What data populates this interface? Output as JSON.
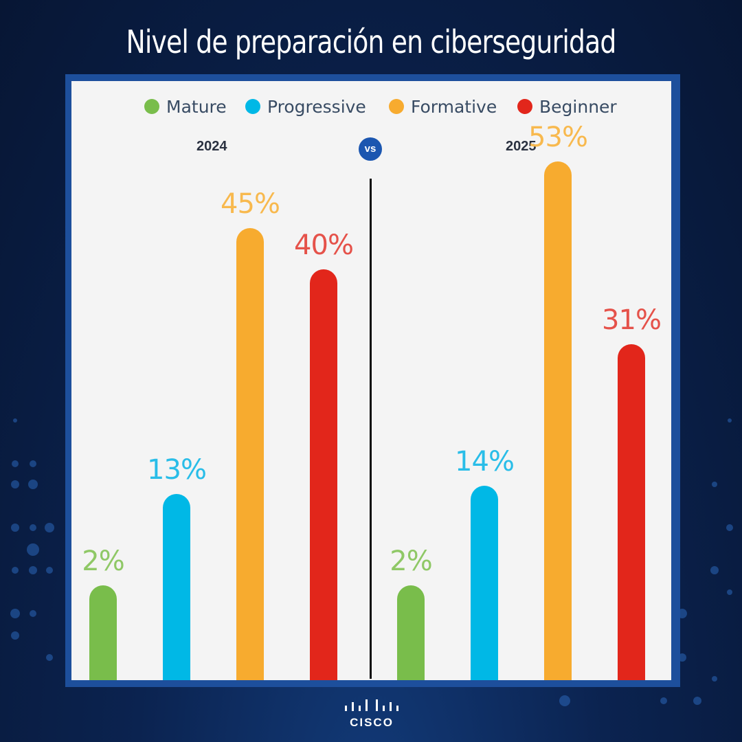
{
  "title": "Nivel de preparación en ciberseguridad",
  "brand": "CISCO",
  "vs_label": "vs",
  "chart_data": {
    "type": "bar",
    "title": "Nivel de preparación en ciberseguridad",
    "categories": [
      "Mature",
      "Progressive",
      "Formative",
      "Beginner"
    ],
    "colors": {
      "Mature": "#79bd4b",
      "Progressive": "#00b8e6",
      "Formative": "#f7ab2f",
      "Beginner": "#e2261b"
    },
    "label_colors": {
      "Mature": "#8fc866",
      "Progressive": "#29bde8",
      "Formative": "#f8b94e",
      "Beginner": "#e5524a"
    },
    "legend_position": "top",
    "ylim": [
      0,
      60
    ],
    "groups": [
      {
        "name": "2024",
        "values": [
          2,
          13,
          45,
          40
        ],
        "labels": [
          "2%",
          "13%",
          "45%",
          "40%"
        ]
      },
      {
        "name": "2025",
        "values": [
          2,
          14,
          53,
          31
        ],
        "labels": [
          "2%",
          "14%",
          "53%",
          "31%"
        ]
      }
    ]
  }
}
